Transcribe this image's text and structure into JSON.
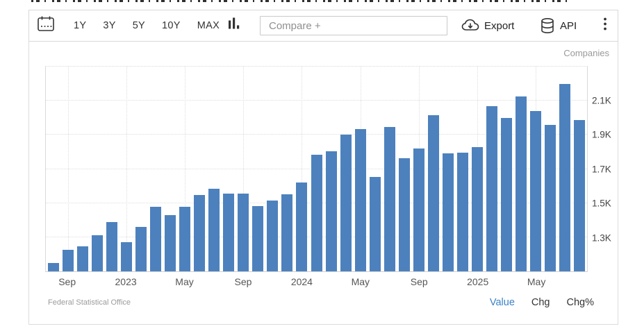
{
  "toolbar": {
    "ranges": [
      "1Y",
      "3Y",
      "5Y",
      "10Y",
      "MAX"
    ],
    "compare_placeholder": "Compare +",
    "export_label": "Export",
    "api_label": "API"
  },
  "chart_data": {
    "type": "bar",
    "title": "",
    "unit_label": "Companies",
    "source": "Federal Statistical Office",
    "bar_color": "#4d81bd",
    "ylim": [
      1100,
      2300
    ],
    "grid": true,
    "legend_position": "none",
    "x": [
      "Aug 2022",
      "Sep 2022",
      "Oct 2022",
      "Nov 2022",
      "Dec 2022",
      "Jan 2023",
      "Feb 2023",
      "Mar 2023",
      "Apr 2023",
      "May 2023",
      "Jun 2023",
      "Jul 2023",
      "Aug 2023",
      "Sep 2023",
      "Oct 2023",
      "Nov 2023",
      "Dec 2023",
      "Jan 2024",
      "Feb 2024",
      "Mar 2024",
      "Apr 2024",
      "May 2024",
      "Jun 2024",
      "Jul 2024",
      "Aug 2024",
      "Sep 2024",
      "Oct 2024",
      "Nov 2024",
      "Dec 2024",
      "Jan 2025",
      "Feb 2025",
      "Mar 2025",
      "Apr 2025",
      "May 2025",
      "Jun 2025",
      "Jul 2025",
      "Aug 2025"
    ],
    "values": [
      1150,
      1228,
      1247,
      1312,
      1387,
      1272,
      1360,
      1480,
      1430,
      1478,
      1548,
      1583,
      1556,
      1556,
      1481,
      1516,
      1552,
      1621,
      1785,
      1805,
      1900,
      1935,
      1655,
      1945,
      1765,
      1820,
      2015,
      1790,
      1795,
      1830,
      2070,
      2000,
      2125,
      2040,
      1960,
      2200,
      1985
    ],
    "yticks": [
      {
        "label": "2.1K",
        "value": 2100
      },
      {
        "label": "1.9K",
        "value": 1900
      },
      {
        "label": "1.7K",
        "value": 1700
      },
      {
        "label": "1.5K",
        "value": 1500
      },
      {
        "label": "1.3K",
        "value": 1300
      }
    ],
    "xticks": [
      {
        "label": "Sep",
        "index": 1
      },
      {
        "label": "2023",
        "index": 5
      },
      {
        "label": "May",
        "index": 9
      },
      {
        "label": "Sep",
        "index": 13
      },
      {
        "label": "2024",
        "index": 17
      },
      {
        "label": "May",
        "index": 21
      },
      {
        "label": "Sep",
        "index": 25
      },
      {
        "label": "2025",
        "index": 29
      },
      {
        "label": "May",
        "index": 33
      }
    ]
  },
  "footer": {
    "source": "Federal Statistical Office",
    "links": [
      "Value",
      "Chg",
      "Chg%"
    ],
    "active_link": "Value",
    "active_color": "#3b82c8"
  }
}
